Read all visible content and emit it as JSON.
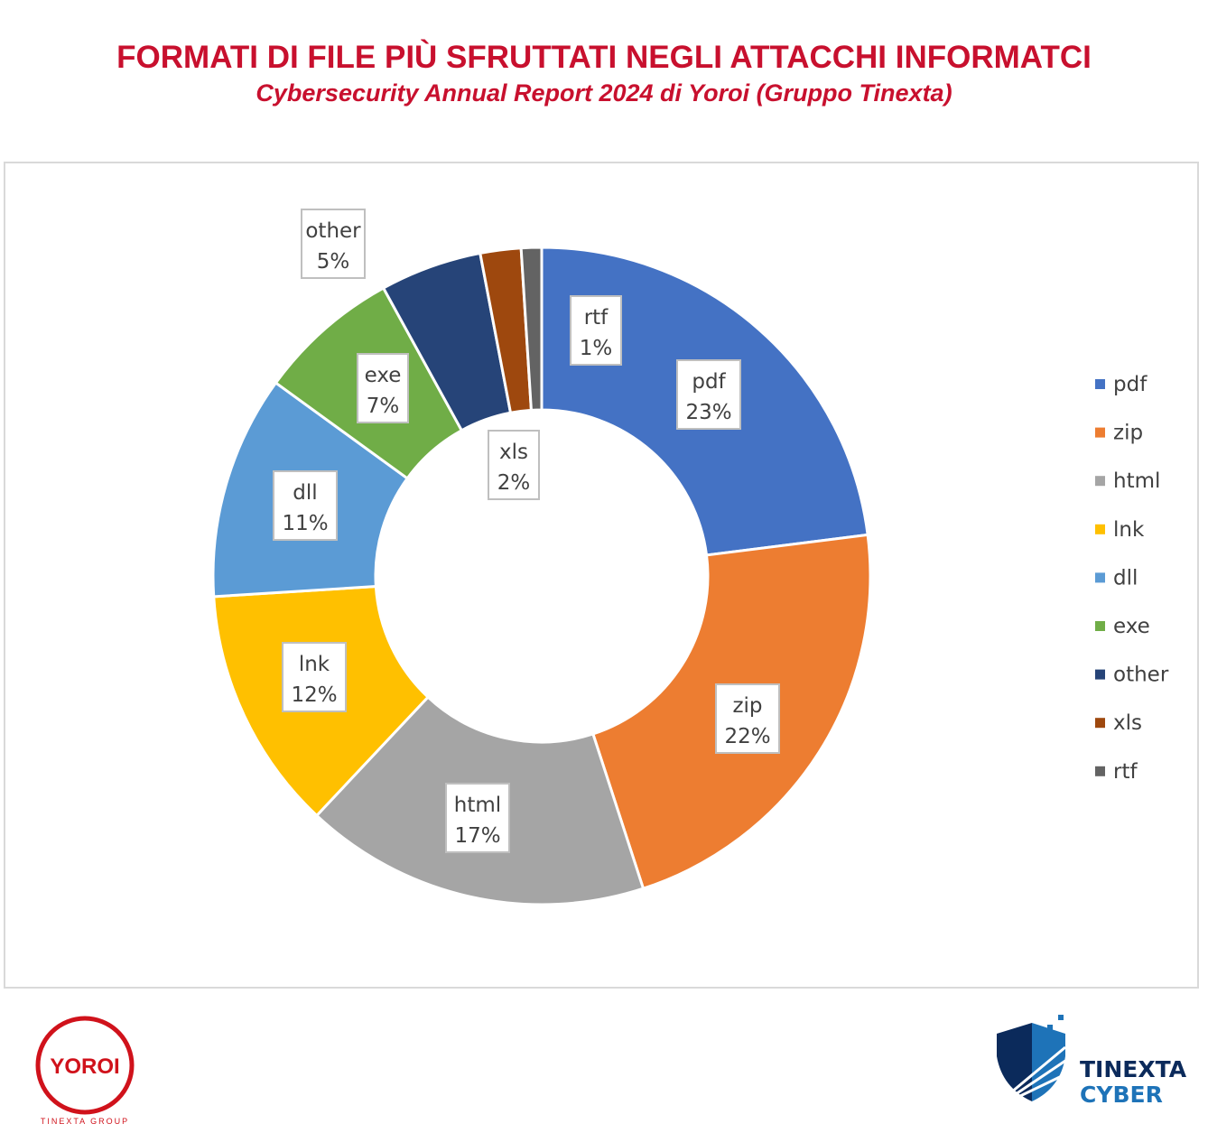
{
  "title": "FORMATI DI FILE PIÙ SFRUTTATI NEGLI ATTACCHI INFORMATCI",
  "subtitle": "Cybersecurity Annual Report 2024 di Yoroi (Gruppo Tinexta)",
  "chart_data": {
    "type": "pie",
    "variant": "donut",
    "categories": [
      "pdf",
      "zip",
      "html",
      "lnk",
      "dll",
      "exe",
      "other",
      "xls",
      "rtf"
    ],
    "values": [
      23,
      22,
      17,
      12,
      11,
      7,
      5,
      2,
      1
    ],
    "unit": "%",
    "colors": [
      "#4472c4",
      "#ed7d31",
      "#a5a5a5",
      "#ffc000",
      "#5b9bd5",
      "#70ad47",
      "#264478",
      "#9e480e",
      "#636363"
    ],
    "legend": "right"
  },
  "logos": {
    "yoroi": "YOROI",
    "yoroi_sub": "TINEXTA GROUP",
    "tinexta_1": "TINEXTA",
    "tinexta_2": "CYBER"
  }
}
